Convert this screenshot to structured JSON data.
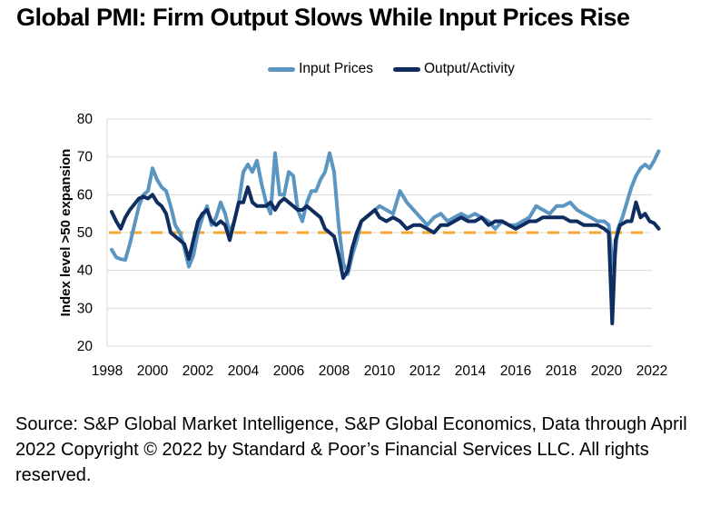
{
  "chart_data": {
    "type": "line",
    "title": "Global PMI: Firm Output Slows While Input Prices Rise",
    "xlabel": "",
    "ylabel": "Index level >50 expansion",
    "xlim": [
      1998,
      2022
    ],
    "ylim": [
      20,
      80
    ],
    "yticks": [
      20,
      30,
      40,
      50,
      60,
      70,
      80
    ],
    "xticks": [
      "1998",
      "2000",
      "2002",
      "2004",
      "2006",
      "2008",
      "2010",
      "2012",
      "2014",
      "2016",
      "2018",
      "2020",
      "2022"
    ],
    "grid": true,
    "legend_position": "top-center",
    "reference_line": {
      "value": 50,
      "style": "dashed",
      "color": "#F5A833"
    },
    "series": [
      {
        "name": "Input Prices",
        "color": "#5B96C2",
        "x": [
          1998.2,
          1998.4,
          1998.6,
          1998.8,
          1999.0,
          1999.2,
          1999.4,
          1999.6,
          1999.8,
          2000.0,
          2000.2,
          2000.4,
          2000.6,
          2000.8,
          2001.0,
          2001.2,
          2001.4,
          2001.6,
          2001.8,
          2002.0,
          2002.2,
          2002.4,
          2002.6,
          2002.8,
          2003.0,
          2003.2,
          2003.4,
          2003.6,
          2003.8,
          2004.0,
          2004.2,
          2004.4,
          2004.6,
          2004.8,
          2005.0,
          2005.2,
          2005.4,
          2005.6,
          2005.8,
          2006.0,
          2006.2,
          2006.4,
          2006.6,
          2006.8,
          2007.0,
          2007.2,
          2007.4,
          2007.6,
          2007.8,
          2008.0,
          2008.2,
          2008.4,
          2008.6,
          2008.8,
          2009.0,
          2009.2,
          2009.4,
          2009.6,
          2009.8,
          2010.0,
          2010.3,
          2010.6,
          2010.9,
          2011.2,
          2011.5,
          2011.8,
          2012.1,
          2012.4,
          2012.7,
          2013.0,
          2013.3,
          2013.6,
          2013.9,
          2014.2,
          2014.5,
          2014.8,
          2015.1,
          2015.4,
          2015.7,
          2016.0,
          2016.3,
          2016.6,
          2016.9,
          2017.2,
          2017.5,
          2017.8,
          2018.1,
          2018.4,
          2018.7,
          2019.0,
          2019.3,
          2019.6,
          2019.9,
          2020.1,
          2020.3,
          2020.5,
          2020.7,
          2020.9,
          2021.1,
          2021.3,
          2021.5,
          2021.7,
          2021.9,
          2022.1,
          2022.3
        ],
        "values": [
          45.5,
          43.5,
          43,
          42.8,
          47,
          52,
          57,
          60,
          61,
          67,
          64,
          62,
          61,
          57,
          52,
          50,
          46,
          41,
          44,
          50,
          54,
          57,
          52,
          54,
          58,
          55,
          50,
          53,
          58,
          66,
          68,
          66,
          69,
          63,
          58,
          55,
          71,
          60,
          60,
          66,
          65,
          56,
          53,
          58,
          61,
          61,
          64,
          66,
          71,
          66,
          52,
          42,
          39,
          44,
          48,
          53,
          54,
          55,
          56,
          57,
          56,
          55,
          61,
          58,
          56,
          54,
          52,
          54,
          55,
          53,
          54,
          55,
          54,
          55,
          54,
          53,
          51,
          53,
          52,
          52,
          53,
          54,
          57,
          56,
          55,
          57,
          57,
          58,
          56,
          55,
          54,
          53,
          53,
          52,
          40,
          51,
          54,
          58,
          62,
          65,
          67,
          68,
          67,
          69,
          71.5
        ]
      },
      {
        "name": "Output/Activity",
        "color": "#0F2D5E",
        "x": [
          1998.2,
          1998.4,
          1998.6,
          1998.8,
          1999.0,
          1999.2,
          1999.4,
          1999.6,
          1999.8,
          2000.0,
          2000.2,
          2000.4,
          2000.6,
          2000.8,
          2001.0,
          2001.2,
          2001.4,
          2001.6,
          2001.8,
          2002.0,
          2002.2,
          2002.4,
          2002.6,
          2002.8,
          2003.0,
          2003.2,
          2003.4,
          2003.6,
          2003.8,
          2004.0,
          2004.2,
          2004.4,
          2004.6,
          2004.8,
          2005.0,
          2005.2,
          2005.4,
          2005.6,
          2005.8,
          2006.0,
          2006.2,
          2006.4,
          2006.6,
          2006.8,
          2007.0,
          2007.2,
          2007.4,
          2007.6,
          2007.8,
          2008.0,
          2008.2,
          2008.4,
          2008.6,
          2008.8,
          2009.0,
          2009.2,
          2009.4,
          2009.6,
          2009.8,
          2010.0,
          2010.3,
          2010.6,
          2010.9,
          2011.2,
          2011.5,
          2011.8,
          2012.1,
          2012.4,
          2012.7,
          2013.0,
          2013.3,
          2013.6,
          2013.9,
          2014.2,
          2014.5,
          2014.8,
          2015.1,
          2015.4,
          2015.7,
          2016.0,
          2016.3,
          2016.6,
          2016.9,
          2017.2,
          2017.5,
          2017.8,
          2018.1,
          2018.4,
          2018.7,
          2019.0,
          2019.3,
          2019.6,
          2019.9,
          2020.1,
          2020.25,
          2020.4,
          2020.6,
          2020.9,
          2021.1,
          2021.3,
          2021.5,
          2021.7,
          2021.9,
          2022.1,
          2022.3
        ],
        "values": [
          55.5,
          53,
          51,
          54,
          56,
          57.5,
          59,
          59.5,
          59,
          60,
          58,
          57,
          55,
          50,
          49,
          48,
          47,
          43,
          48,
          53,
          55,
          56,
          53,
          52,
          53,
          52,
          48,
          53,
          58,
          58,
          62,
          58,
          57,
          57,
          57,
          58,
          56,
          58,
          59,
          58,
          57,
          56,
          56,
          57,
          56,
          55,
          54,
          51,
          50,
          49,
          44,
          38,
          40,
          46,
          50,
          53,
          54,
          55,
          56,
          54,
          53,
          54,
          53,
          51,
          52,
          52,
          51,
          50,
          52,
          52,
          53,
          54,
          53,
          53,
          54,
          52,
          53,
          53,
          52,
          51,
          52,
          53,
          53,
          54,
          54,
          54,
          54,
          53,
          53,
          52,
          52,
          52,
          51,
          50,
          26,
          48,
          52,
          53,
          53,
          58,
          54,
          55,
          53,
          52.5,
          51
        ]
      }
    ]
  },
  "title": "Global PMI: Firm Output Slows While Input Prices Rise",
  "legend": [
    {
      "label": "Input Prices",
      "color": "#5B96C2"
    },
    {
      "label": "Output/Activity",
      "color": "#0F2D5E"
    }
  ],
  "source_text": "Source: S&P Global Market Intelligence, S&P Global Economics, Data through April  2022 Copyright © 2022 by Standard & Poor’s Financial Services LLC. All rights reserved."
}
